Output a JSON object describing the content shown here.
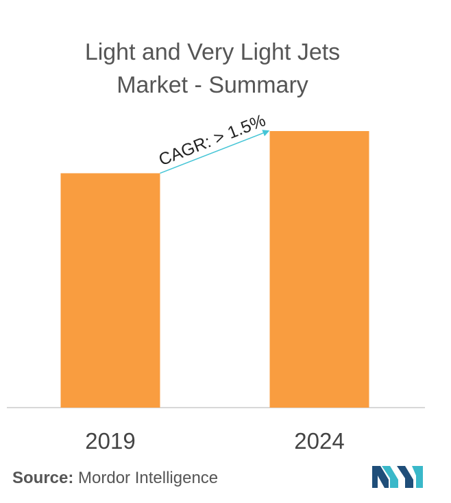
{
  "title_line1": "Light and Very Light Jets",
  "title_line2": "Market - Summary",
  "chart_data": {
    "type": "bar",
    "categories": [
      "2019",
      "2024"
    ],
    "values": [
      100,
      118
    ],
    "ylim": [
      0,
      130
    ],
    "annotation": "CAGR: > 1.5%",
    "bar_color": "#F99D40",
    "arrow_color": "#45C5D6",
    "grid": false
  },
  "source": {
    "label": "Source:",
    "text": "Mordor Intelligence"
  },
  "colors": {
    "logo_dark": "#1F4E79",
    "logo_teal": "#39B8C9"
  }
}
